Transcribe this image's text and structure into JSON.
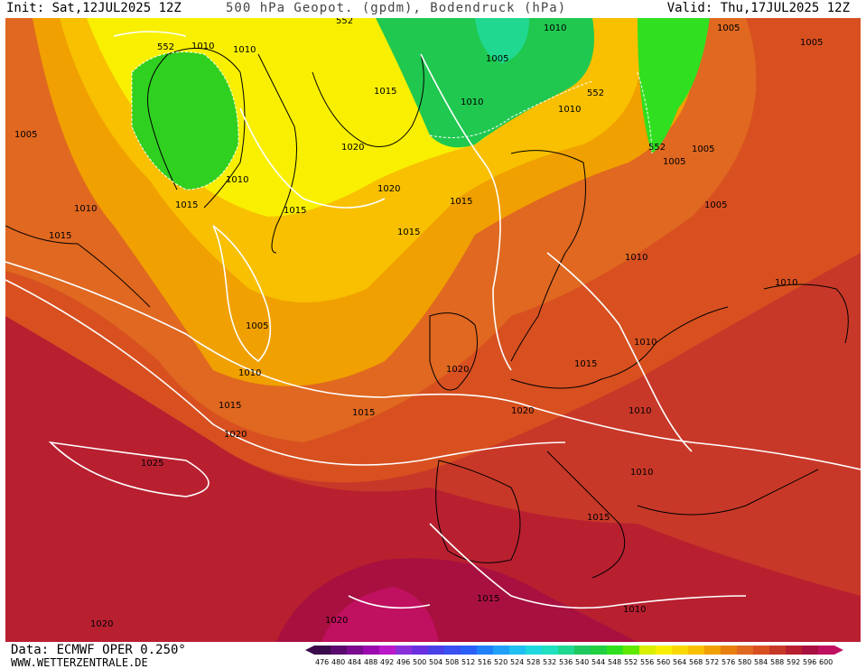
{
  "header": {
    "init": "Init: Sat,12JUL2025 12Z",
    "title": "500 hPa Geopot. (gpdm), Bodendruck (hPa)",
    "valid": "Valid: Thu,17JUL2025 12Z"
  },
  "footer": {
    "data_source": "Data: ECMWF OPER 0.250°",
    "website": "WWW.WETTERZENTRALE.DE"
  },
  "legend": {
    "values": [
      "476",
      "480",
      "484",
      "488",
      "492",
      "496",
      "500",
      "504",
      "508",
      "512",
      "516",
      "520",
      "524",
      "528",
      "532",
      "536",
      "540",
      "544",
      "548",
      "552",
      "556",
      "560",
      "564",
      "568",
      "572",
      "576",
      "580",
      "584",
      "588",
      "592",
      "596",
      "600"
    ],
    "colors": [
      "#3a0a4a",
      "#5a0a6e",
      "#7a0a8e",
      "#9a0aae",
      "#ba18c8",
      "#8a30d8",
      "#6a30e0",
      "#4a40e8",
      "#3a50f0",
      "#2a60f8",
      "#2080f8",
      "#20a0f8",
      "#20c0f0",
      "#20d8e0",
      "#20e0c0",
      "#20d890",
      "#20c860",
      "#20d040",
      "#30e020",
      "#60e800",
      "#d8f000",
      "#f8f000",
      "#f8d800",
      "#f8c000",
      "#f0a000",
      "#e88010",
      "#e06820",
      "#d85020",
      "#c83828",
      "#b82030",
      "#a81040",
      "#c01060"
    ]
  },
  "map": {
    "geopotential_labels": [
      "552",
      "552",
      "552",
      "552"
    ],
    "isobar_labels": [
      "1010",
      "1010",
      "1005",
      "1010",
      "1010",
      "1005",
      "1005",
      "1015",
      "1010",
      "1015",
      "1020",
      "1020",
      "1015",
      "1005",
      "1015",
      "1010",
      "1005",
      "1010",
      "1015",
      "1020",
      "1015",
      "1010",
      "1015",
      "1005",
      "1005",
      "1010",
      "1020",
      "1015",
      "1010",
      "1010",
      "1020",
      "1005",
      "1010",
      "1025",
      "1015",
      "1010",
      "1015",
      "1015",
      "1010",
      "1020",
      "1020"
    ]
  }
}
